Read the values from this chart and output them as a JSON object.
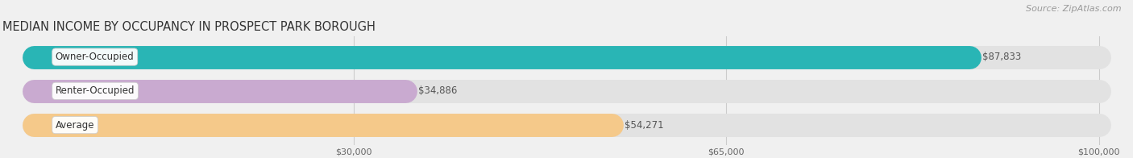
{
  "title": "MEDIAN INCOME BY OCCUPANCY IN PROSPECT PARK BOROUGH",
  "source": "Source: ZipAtlas.com",
  "categories": [
    "Owner-Occupied",
    "Renter-Occupied",
    "Average"
  ],
  "values": [
    87833,
    34886,
    54271
  ],
  "labels": [
    "$87,833",
    "$34,886",
    "$54,271"
  ],
  "bar_colors": [
    "#29b5b5",
    "#c9aad0",
    "#f5c98a"
  ],
  "bg_color": "#f0f0f0",
  "bar_bg_color": "#e2e2e2",
  "xlim_min": -3000,
  "xlim_max": 103000,
  "xticks": [
    30000,
    65000,
    100000
  ],
  "xtick_labels": [
    "$30,000",
    "$65,000",
    "$100,000"
  ],
  "title_fontsize": 10.5,
  "source_fontsize": 8,
  "bar_height": 0.52,
  "label_fontsize": 8.5,
  "value_fontsize": 8.5,
  "figsize": [
    14.06,
    1.96
  ],
  "dpi": 100
}
